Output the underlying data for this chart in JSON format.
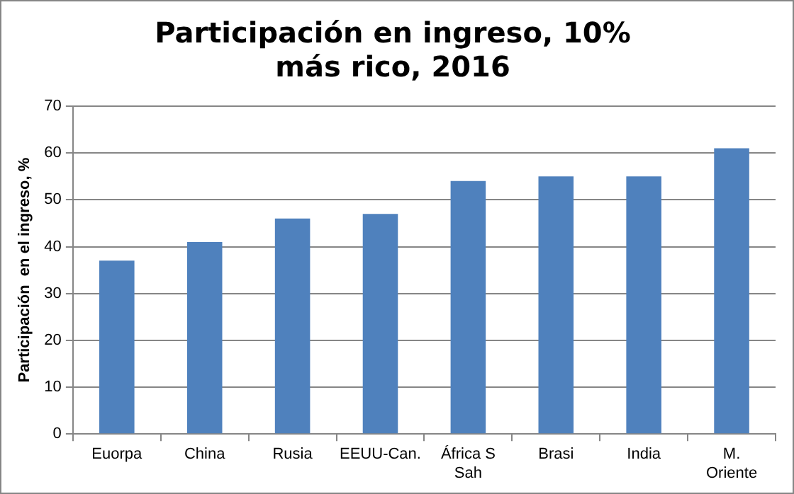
{
  "chart_data": {
    "type": "bar",
    "title": "Participación en ingreso, 10% más rico, 2016",
    "ylabel": "Participación  en el ingreso, %",
    "categories": [
      "Euorpa",
      "China",
      "Rusia",
      "EEUU-Can.",
      "África S Sah",
      "Brasi",
      "India",
      "M. Oriente"
    ],
    "values": [
      37,
      41,
      46,
      47,
      54,
      55,
      55,
      61
    ],
    "color": "#4f81bd",
    "ylim": [
      0,
      70
    ],
    "yticks": [
      0,
      10,
      20,
      30,
      40,
      50,
      60,
      70
    ],
    "grid": "y",
    "legend": false
  }
}
